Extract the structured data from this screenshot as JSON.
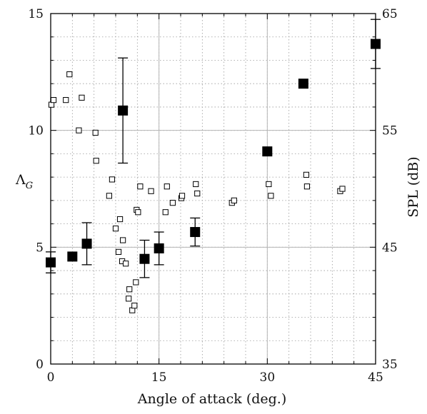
{
  "chart_data": {
    "type": "scatter",
    "title": "",
    "xlabel": "Angle of attack (deg.)",
    "ylabel": "Λ_G",
    "ylabel_main": "Λ",
    "ylabel_sub": "G",
    "y2label": "SPL (dB)",
    "xlim": [
      0,
      45
    ],
    "ylim": [
      0,
      15
    ],
    "y2lim": [
      35,
      65
    ],
    "x_ticks": [
      0,
      15,
      30,
      45
    ],
    "y_ticks": [
      0,
      5,
      10,
      15
    ],
    "y2_ticks": [
      35,
      45,
      55,
      65
    ],
    "x_tick_labels": [
      "0",
      "15",
      "30",
      "45"
    ],
    "y_tick_labels": [
      "0",
      "5",
      "10",
      "15"
    ],
    "y2_tick_labels": [
      "35",
      "45",
      "55",
      "65"
    ],
    "grid": true,
    "grid_minor": true,
    "series": [
      {
        "axis": "left",
        "marker": "open-square",
        "points": [
          [
            0.1,
            11.1
          ],
          [
            0.4,
            11.3
          ],
          [
            2.1,
            11.3
          ],
          [
            2.6,
            12.4
          ],
          [
            3.9,
            10.0
          ],
          [
            4.3,
            11.4
          ],
          [
            6.2,
            9.9
          ],
          [
            6.3,
            8.7
          ],
          [
            8.1,
            7.2
          ],
          [
            8.5,
            7.9
          ],
          [
            9.0,
            5.8
          ],
          [
            9.4,
            4.8
          ],
          [
            9.6,
            6.2
          ],
          [
            9.9,
            4.4
          ],
          [
            10.0,
            5.3
          ],
          [
            10.4,
            4.3
          ],
          [
            10.8,
            2.8
          ],
          [
            10.9,
            3.2
          ],
          [
            11.3,
            2.3
          ],
          [
            11.6,
            2.5
          ],
          [
            11.8,
            3.5
          ],
          [
            11.9,
            6.6
          ],
          [
            12.1,
            6.5
          ],
          [
            12.4,
            7.6
          ],
          [
            13.9,
            7.4
          ],
          [
            15.9,
            6.5
          ],
          [
            16.1,
            7.6
          ],
          [
            16.9,
            6.9
          ],
          [
            18.1,
            7.1
          ],
          [
            18.2,
            7.2
          ],
          [
            20.1,
            7.7
          ],
          [
            20.3,
            7.3
          ],
          [
            25.1,
            6.9
          ],
          [
            25.4,
            7.0
          ],
          [
            30.2,
            7.7
          ],
          [
            30.5,
            7.2
          ],
          [
            35.4,
            8.1
          ],
          [
            35.5,
            7.6
          ],
          [
            40.1,
            7.4
          ],
          [
            40.4,
            7.5
          ]
        ]
      },
      {
        "axis": "right",
        "marker": "filled-square",
        "points": [
          {
            "x": 0,
            "y": 43.7,
            "err": 0.9
          },
          {
            "x": 3,
            "y": 44.2,
            "err": 0
          },
          {
            "x": 5,
            "y": 45.3,
            "err": 1.8
          },
          {
            "x": 10,
            "y": 56.7,
            "err": 4.5
          },
          {
            "x": 13,
            "y": 44.0,
            "err": 1.6
          },
          {
            "x": 15,
            "y": 44.9,
            "err": 1.4
          },
          {
            "x": 20,
            "y": 46.3,
            "err": 1.2
          },
          {
            "x": 30,
            "y": 53.2,
            "err": 0
          },
          {
            "x": 35,
            "y": 59.0,
            "err": 0
          },
          {
            "x": 45,
            "y": 62.4,
            "err": 2.1
          }
        ]
      }
    ]
  }
}
